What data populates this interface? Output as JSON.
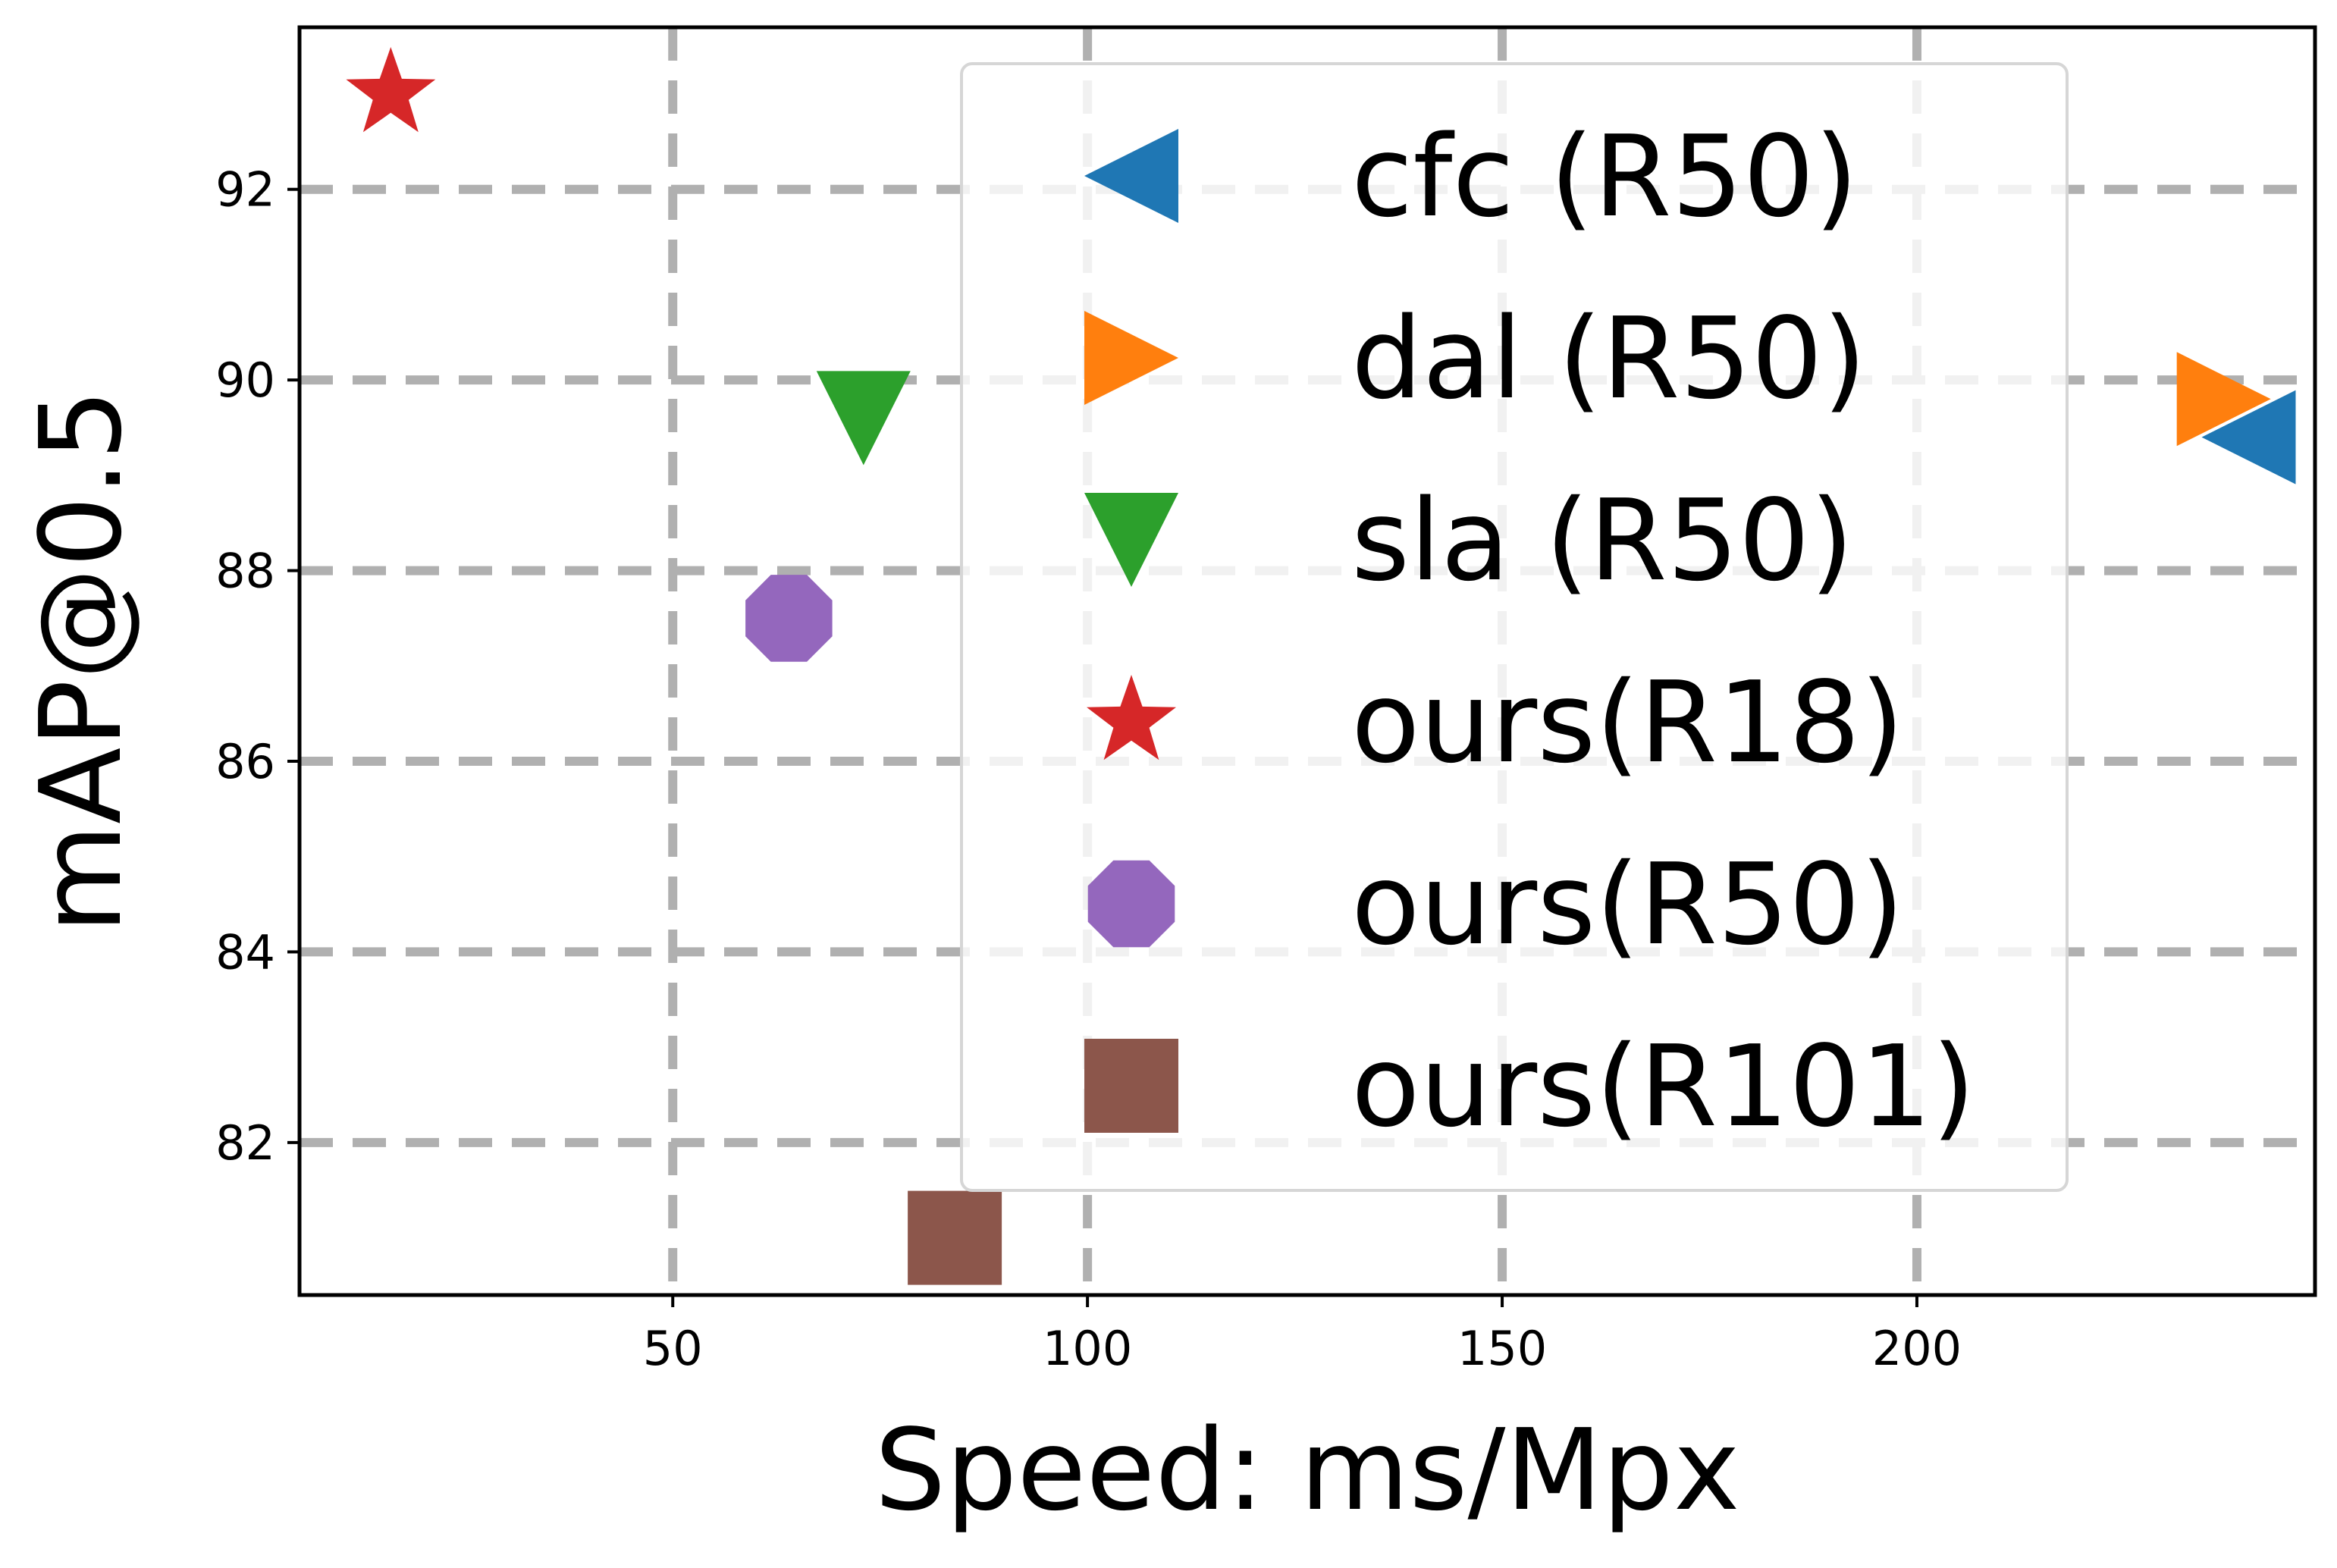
{
  "chart_data": {
    "type": "scatter",
    "title": "",
    "xlabel": "Speed: ms/Mpx",
    "ylabel": "mAP@0.5",
    "xlim": [
      5,
      248
    ],
    "ylim": [
      80.4,
      93.7
    ],
    "xticks": [
      50,
      100,
      150,
      200
    ],
    "yticks": [
      82,
      84,
      86,
      88,
      90,
      92
    ],
    "grid": true,
    "legend_position": "top-right",
    "series": [
      {
        "name": "cfc (R50)",
        "marker": "triangle-left",
        "color": "#1f77b4",
        "points": [
          {
            "x": 240,
            "y": 89.4
          }
        ]
      },
      {
        "name": "dal (R50)",
        "marker": "triangle-right",
        "color": "#ff7f0e",
        "points": [
          {
            "x": 237,
            "y": 89.8
          }
        ]
      },
      {
        "name": "sla (R50)",
        "marker": "triangle-down",
        "color": "#2ca02c",
        "points": [
          {
            "x": 73,
            "y": 89.6
          }
        ]
      },
      {
        "name": "ours(R18)",
        "marker": "star",
        "color": "#d62728",
        "points": [
          {
            "x": 16,
            "y": 93.0
          }
        ]
      },
      {
        "name": "ours(R50)",
        "marker": "octagon",
        "color": "#9467bd",
        "points": [
          {
            "x": 64,
            "y": 87.5
          }
        ]
      },
      {
        "name": "ours(R101)",
        "marker": "square",
        "color": "#8c564b",
        "points": [
          {
            "x": 84,
            "y": 81.0
          }
        ]
      }
    ]
  }
}
